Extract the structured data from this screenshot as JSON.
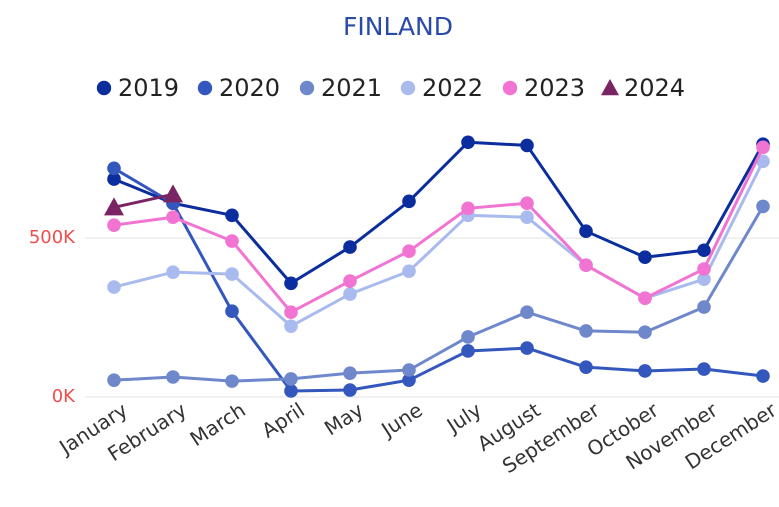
{
  "chart_data": {
    "type": "line",
    "title": "FINLAND",
    "categories": [
      "January",
      "February",
      "March",
      "April",
      "May",
      "June",
      "July",
      "August",
      "September",
      "October",
      "November",
      "December"
    ],
    "series": [
      {
        "name": "2019",
        "color": "#0b2d9e",
        "marker": "circle",
        "values": [
          686000,
          610000,
          572000,
          358000,
          472000,
          616000,
          802000,
          792000,
          522000,
          440000,
          462000,
          796000
        ]
      },
      {
        "name": "2020",
        "color": "#3457bd",
        "marker": "circle",
        "values": [
          720000,
          610000,
          270000,
          19000,
          22000,
          53000,
          145000,
          154000,
          94000,
          82000,
          88000,
          66000
        ]
      },
      {
        "name": "2021",
        "color": "#6f88cc",
        "marker": "circle",
        "values": [
          53000,
          63000,
          50000,
          57000,
          75000,
          85000,
          189000,
          267000,
          208000,
          204000,
          283000,
          600000
        ]
      },
      {
        "name": "2022",
        "color": "#a9bbee",
        "marker": "circle",
        "values": [
          346000,
          393000,
          387000,
          223000,
          324000,
          396000,
          572000,
          566000,
          415000,
          311000,
          371000,
          742000
        ]
      },
      {
        "name": "2023",
        "color": "#f274d2",
        "marker": "circle",
        "values": [
          541000,
          566000,
          491000,
          267000,
          365000,
          459000,
          594000,
          610000,
          415000,
          311000,
          403000,
          786000
        ]
      },
      {
        "name": "2024",
        "color": "#7b2463",
        "marker": "triangle",
        "values": [
          597000,
          638000,
          null,
          null,
          null,
          null,
          null,
          null,
          null,
          null,
          null,
          null
        ]
      }
    ],
    "ylim": [
      0,
      850000
    ],
    "yticks": [
      {
        "value": 0,
        "label": "0K"
      },
      {
        "value": 500000,
        "label": "500K"
      }
    ],
    "grid": true
  }
}
